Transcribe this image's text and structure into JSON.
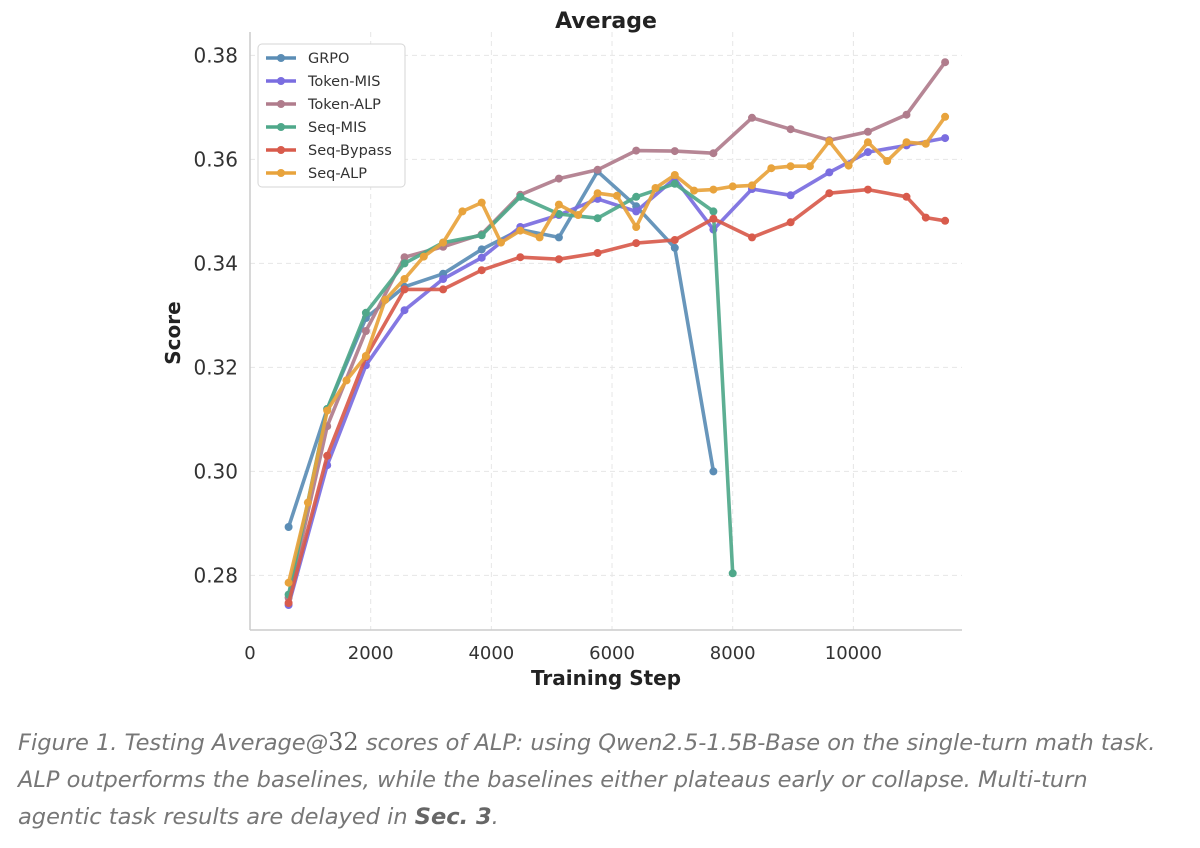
{
  "chart_data": {
    "type": "line",
    "title": "Average",
    "xlabel": "Training Step",
    "ylabel": "Score",
    "xlim": [
      0,
      11800
    ],
    "ylim": [
      0.2695,
      0.3845
    ],
    "xticks": [
      0,
      2000,
      4000,
      6000,
      8000,
      10000
    ],
    "xtick_labels": [
      "0",
      "2000",
      "4000",
      "6000",
      "8000",
      "10000"
    ],
    "yticks": [
      0.28,
      0.3,
      0.32,
      0.34,
      0.36,
      0.38
    ],
    "ytick_labels": [
      "0.28",
      "0.30",
      "0.32",
      "0.34",
      "0.36",
      "0.38"
    ],
    "grid": true,
    "legend_position": "top-left",
    "series": [
      {
        "name": "GRPO",
        "color": "#5b8db5",
        "x": [
          640,
          1280,
          1920,
          2560,
          3200,
          3840,
          4480,
          5120,
          5760,
          6400,
          7040,
          7680
        ],
        "y": [
          0.2893,
          0.312,
          0.3295,
          0.3355,
          0.338,
          0.3427,
          0.3465,
          0.345,
          0.3577,
          0.351,
          0.343,
          0.3
        ]
      },
      {
        "name": "Token-MIS",
        "color": "#7a6de0",
        "x": [
          640,
          1280,
          1920,
          2560,
          3200,
          3840,
          4480,
          5120,
          5760,
          6400,
          7040,
          7680,
          8320,
          8960,
          9600,
          10240,
          10880,
          11520
        ],
        "y": [
          0.2743,
          0.3012,
          0.3204,
          0.331,
          0.337,
          0.3411,
          0.347,
          0.3493,
          0.3524,
          0.35,
          0.3563,
          0.3465,
          0.3543,
          0.3531,
          0.3575,
          0.3614,
          0.3627,
          0.3641
        ]
      },
      {
        "name": "Token-ALP",
        "color": "#b07c8c",
        "x": [
          640,
          1280,
          1920,
          2560,
          3200,
          3840,
          4480,
          5120,
          5760,
          6400,
          7040,
          7680,
          8320,
          8960,
          9600,
          10240,
          10880,
          11520
        ],
        "y": [
          0.2757,
          0.3087,
          0.327,
          0.3412,
          0.3432,
          0.3456,
          0.3532,
          0.3563,
          0.358,
          0.3617,
          0.3616,
          0.3612,
          0.368,
          0.3658,
          0.3637,
          0.3653,
          0.3686,
          0.3787
        ]
      },
      {
        "name": "Seq-MIS",
        "color": "#4fa88a",
        "x": [
          640,
          1280,
          1920,
          2560,
          3200,
          3840,
          4480,
          5120,
          5760,
          6400,
          7040,
          7680,
          8000
        ],
        "y": [
          0.2763,
          0.312,
          0.3305,
          0.34,
          0.344,
          0.3454,
          0.3528,
          0.3495,
          0.3487,
          0.3528,
          0.3553,
          0.35,
          0.2804
        ]
      },
      {
        "name": "Seq-Bypass",
        "color": "#d85b4c",
        "x": [
          640,
          1280,
          1920,
          2560,
          3200,
          3840,
          4480,
          5120,
          5760,
          6400,
          7040,
          7680,
          8320,
          8960,
          9600,
          10240,
          10880,
          11200,
          11520
        ],
        "y": [
          0.2747,
          0.303,
          0.322,
          0.335,
          0.335,
          0.3387,
          0.3412,
          0.3408,
          0.342,
          0.3439,
          0.3445,
          0.3486,
          0.345,
          0.3479,
          0.3535,
          0.3542,
          0.3528,
          0.3488,
          0.3482
        ]
      },
      {
        "name": "Seq-ALP",
        "color": "#e8a33c",
        "x": [
          640,
          960,
          1280,
          1600,
          1920,
          2240,
          2560,
          2880,
          3200,
          3520,
          3840,
          4160,
          4480,
          4800,
          5120,
          5440,
          5760,
          6080,
          6400,
          6720,
          7040,
          7360,
          7680,
          8000,
          8320,
          8640,
          8960,
          9280,
          9600,
          9920,
          10240,
          10560,
          10880,
          11200,
          11520
        ],
        "y": [
          0.2786,
          0.294,
          0.3117,
          0.3175,
          0.3222,
          0.333,
          0.337,
          0.3413,
          0.344,
          0.35,
          0.3517,
          0.344,
          0.3463,
          0.345,
          0.3513,
          0.3493,
          0.3535,
          0.353,
          0.347,
          0.3545,
          0.357,
          0.354,
          0.3542,
          0.3548,
          0.355,
          0.3583,
          0.3587,
          0.3587,
          0.3635,
          0.3588,
          0.3633,
          0.3597,
          0.3633,
          0.363,
          0.3682
        ]
      }
    ]
  },
  "caption": {
    "prefix": "Figure 1. Testing Average@",
    "math": "32",
    "body": " scores of ALP: using Qwen2.5-1.5B-Base on the single-turn math task. ALP outperforms the baselines, while the baselines either plateaus early or collapse. Multi-turn agentic task results are delayed in ",
    "ref": "Sec. 3",
    "end": "."
  }
}
